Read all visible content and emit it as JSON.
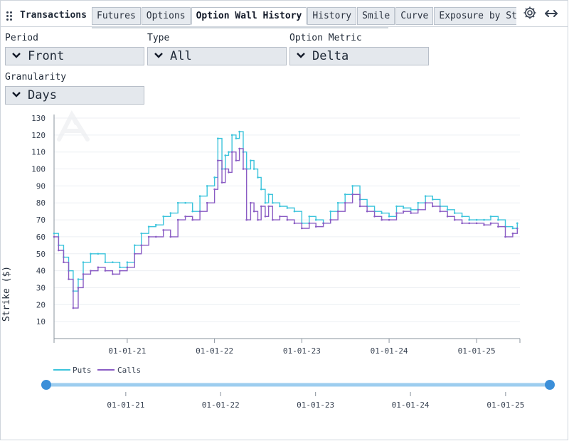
{
  "widget": {
    "title": "Transactions"
  },
  "tabs": [
    {
      "label": "Futures",
      "active": false
    },
    {
      "label": "Options",
      "active": false
    },
    {
      "label": "Option Wall History",
      "active": true
    },
    {
      "label": "History",
      "active": false
    },
    {
      "label": "Smile",
      "active": false
    },
    {
      "label": "Curve",
      "active": false
    },
    {
      "label": "Exposure by Strike",
      "active": false
    }
  ],
  "header_icons": {
    "settings": "gear-icon",
    "expand": "double-arrow-icon"
  },
  "filters": {
    "period": {
      "label": "Period",
      "value": "Front"
    },
    "type": {
      "label": "Type",
      "value": "All"
    },
    "metric": {
      "label": "Option Metric",
      "value": "Delta"
    },
    "granularity": {
      "label": "Granularity",
      "value": "Days"
    }
  },
  "chart_data": {
    "type": "line",
    "title": "",
    "xlabel": "",
    "ylabel": "Strike ($)",
    "ylim": [
      0,
      130
    ],
    "yticks": [
      10,
      20,
      30,
      40,
      50,
      60,
      70,
      80,
      90,
      100,
      110,
      120,
      130
    ],
    "x_range": [
      "2020-03-01",
      "2025-07-01"
    ],
    "xticks": [
      "01-01-21",
      "01-01-22",
      "01-01-23",
      "01-01-24",
      "01-01-25"
    ],
    "grid": "horizontal",
    "legend_position": "bottom-left",
    "series": [
      {
        "name": "Puts",
        "color": "#3cc4dc",
        "x": [
          "2020-03-01",
          "2020-03-20",
          "2020-04-10",
          "2020-05-01",
          "2020-05-20",
          "2020-06-10",
          "2020-07-01",
          "2020-08-01",
          "2020-09-01",
          "2020-10-01",
          "2020-11-01",
          "2020-12-01",
          "2021-01-01",
          "2021-02-01",
          "2021-03-01",
          "2021-04-01",
          "2021-05-01",
          "2021-06-01",
          "2021-07-01",
          "2021-08-01",
          "2021-09-01",
          "2021-10-01",
          "2021-11-01",
          "2021-12-01",
          "2022-01-01",
          "2022-01-15",
          "2022-02-01",
          "2022-02-15",
          "2022-03-01",
          "2022-03-15",
          "2022-04-01",
          "2022-04-15",
          "2022-05-01",
          "2022-05-15",
          "2022-06-01",
          "2022-06-15",
          "2022-07-01",
          "2022-07-15",
          "2022-08-01",
          "2022-08-15",
          "2022-09-01",
          "2022-10-01",
          "2022-11-01",
          "2022-12-01",
          "2023-01-01",
          "2023-02-01",
          "2023-03-01",
          "2023-04-01",
          "2023-05-01",
          "2023-06-01",
          "2023-07-01",
          "2023-08-01",
          "2023-09-01",
          "2023-10-01",
          "2023-11-01",
          "2023-12-01",
          "2024-01-01",
          "2024-02-01",
          "2024-03-01",
          "2024-04-01",
          "2024-05-01",
          "2024-06-01",
          "2024-07-01",
          "2024-08-01",
          "2024-09-01",
          "2024-10-01",
          "2024-11-01",
          "2024-12-01",
          "2025-01-01",
          "2025-02-01",
          "2025-03-01",
          "2025-04-01",
          "2025-05-01",
          "2025-06-01",
          "2025-06-20"
        ],
        "y": [
          62,
          55,
          48,
          40,
          28,
          35,
          45,
          50,
          50,
          45,
          45,
          42,
          45,
          55,
          62,
          66,
          67,
          72,
          74,
          80,
          80,
          75,
          84,
          90,
          95,
          118,
          100,
          108,
          110,
          120,
          118,
          122,
          110,
          100,
          105,
          100,
          95,
          88,
          80,
          85,
          80,
          78,
          77,
          75,
          68,
          72,
          70,
          68,
          75,
          80,
          85,
          90,
          82,
          78,
          75,
          74,
          72,
          78,
          77,
          76,
          80,
          84,
          82,
          78,
          76,
          74,
          72,
          70,
          70,
          70,
          72,
          70,
          66,
          65,
          68
        ]
      },
      {
        "name": "Calls",
        "color": "#8a5cc4",
        "x": [
          "2020-03-01",
          "2020-03-20",
          "2020-04-10",
          "2020-05-01",
          "2020-05-20",
          "2020-06-10",
          "2020-07-01",
          "2020-08-01",
          "2020-09-01",
          "2020-10-01",
          "2020-11-01",
          "2020-12-01",
          "2021-01-01",
          "2021-02-01",
          "2021-03-01",
          "2021-04-01",
          "2021-05-01",
          "2021-06-01",
          "2021-07-01",
          "2021-08-01",
          "2021-09-01",
          "2021-10-01",
          "2021-11-01",
          "2021-12-01",
          "2022-01-01",
          "2022-01-15",
          "2022-02-01",
          "2022-02-15",
          "2022-03-01",
          "2022-03-15",
          "2022-04-01",
          "2022-04-15",
          "2022-05-01",
          "2022-05-15",
          "2022-06-01",
          "2022-06-15",
          "2022-07-01",
          "2022-07-15",
          "2022-08-01",
          "2022-08-15",
          "2022-09-01",
          "2022-10-01",
          "2022-11-01",
          "2022-12-01",
          "2023-01-01",
          "2023-02-01",
          "2023-03-01",
          "2023-04-01",
          "2023-05-01",
          "2023-06-01",
          "2023-07-01",
          "2023-08-01",
          "2023-09-01",
          "2023-10-01",
          "2023-11-01",
          "2023-12-01",
          "2024-01-01",
          "2024-02-01",
          "2024-03-01",
          "2024-04-01",
          "2024-05-01",
          "2024-06-01",
          "2024-07-01",
          "2024-08-01",
          "2024-09-01",
          "2024-10-01",
          "2024-11-01",
          "2024-12-01",
          "2025-01-01",
          "2025-02-01",
          "2025-03-01",
          "2025-04-01",
          "2025-05-01",
          "2025-06-01",
          "2025-06-20"
        ],
        "y": [
          60,
          52,
          45,
          35,
          18,
          30,
          38,
          40,
          42,
          40,
          38,
          40,
          42,
          50,
          55,
          60,
          60,
          64,
          60,
          70,
          72,
          70,
          75,
          80,
          88,
          105,
          92,
          100,
          98,
          110,
          105,
          112,
          100,
          70,
          80,
          75,
          70,
          78,
          72,
          78,
          70,
          72,
          70,
          68,
          65,
          68,
          66,
          68,
          70,
          75,
          80,
          85,
          78,
          75,
          72,
          70,
          70,
          74,
          75,
          74,
          76,
          80,
          78,
          75,
          72,
          70,
          68,
          68,
          68,
          67,
          68,
          66,
          60,
          62,
          65
        ]
      }
    ],
    "range_slider": {
      "start": "2020-03-01",
      "end": "2025-06-20",
      "ticks": [
        "01-01-21",
        "01-01-22",
        "01-01-23",
        "01-01-24",
        "01-01-25"
      ]
    }
  }
}
